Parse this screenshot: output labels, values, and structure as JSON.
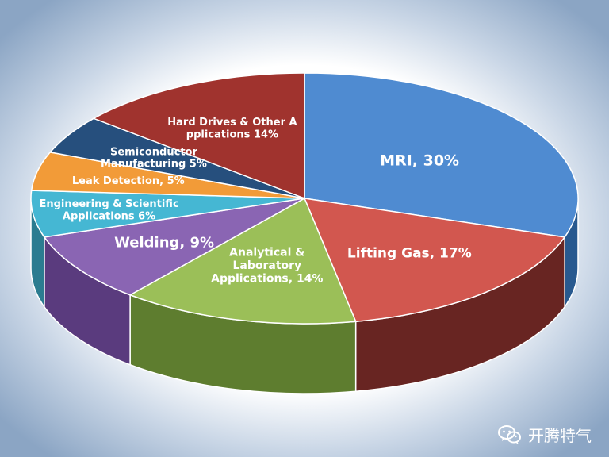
{
  "chart_data": {
    "type": "pie",
    "title": "",
    "slices": [
      {
        "label": "MRI, 30%",
        "value": 30,
        "color": "#4F8BD1",
        "side": "#28598F"
      },
      {
        "label": "Lifting Gas, 17%",
        "value": 17,
        "color": "#D2574F",
        "side": "#682522"
      },
      {
        "label": "Analytical & Laboratory Applications, 14%",
        "value": 14,
        "color": "#9BBF58",
        "side": "#5E7D2F"
      },
      {
        "label": "Welding, 9%",
        "value": 9,
        "color": "#8A65B3",
        "side": "#5A3B7E"
      },
      {
        "label": "Engineering & Scientific Applications 6%",
        "value": 6,
        "color": "#45B7D3",
        "side": "#2B7C90"
      },
      {
        "label": "Leak Detection, 5%",
        "value": 5,
        "color": "#F29B38",
        "side": "#A96417"
      },
      {
        "label": "Semiconductor Manufacturing 5%",
        "value": 5,
        "color": "#264F7D",
        "side": "#173352"
      },
      {
        "label": "Hard Drives & Other Applications 14%",
        "value": 14,
        "color": "#A0332E",
        "side": "#5E1B18"
      }
    ]
  },
  "background": {
    "center": "#FFFFFF",
    "edge": "#8BA5C4"
  },
  "watermark": {
    "text": "开腾特气",
    "icon": "wechat-icon"
  }
}
